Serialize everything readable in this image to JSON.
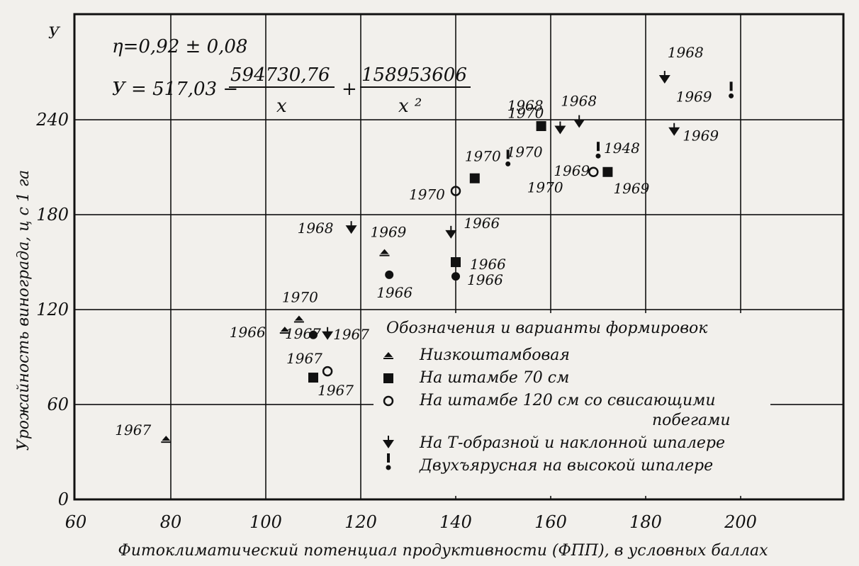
{
  "chart_data": {
    "type": "scatter",
    "xlim": [
      60,
      222
    ],
    "ylim": [
      0,
      285
    ],
    "grid": true,
    "x_ticks": [
      60,
      80,
      100,
      120,
      140,
      160,
      180,
      200
    ],
    "y_ticks": [
      0,
      60,
      120,
      180,
      240
    ],
    "x_tick_labels": [
      "60",
      "80",
      "100",
      "120",
      "140",
      "160",
      "180",
      "200"
    ],
    "y_tick_labels": [
      "0",
      "60",
      "120",
      "180",
      "240"
    ],
    "xlabel": "Фитоклиматический потенциал продуктивности (ФПП), в условных баллах",
    "ylabel": "Урожайность винограда, ц с 1 га",
    "y_axis_letter": "У",
    "equation": {
      "line1": "η=0,92 ± 0,08",
      "prefix": "У = 517,03 −",
      "num1": "594730,76",
      "den1": "x",
      "plus": "+",
      "num2": "158953606",
      "den2": "x ²"
    },
    "curve": {
      "formula": "y = 517.03 - 594730.76/x + 158953606/x^2",
      "dashed_low": [
        70,
        80
      ],
      "solid": [
        80,
        198
      ],
      "dashed_high": [
        198,
        221
      ]
    },
    "legend": {
      "title": "Обозначения и варианты формировок",
      "items": [
        {
          "marker": "tri",
          "label": "Низкоштамбовая"
        },
        {
          "marker": "square",
          "label": "На штамбе 70 см"
        },
        {
          "marker": "ring",
          "label": "На штамбе 120 см со свисающими"
        },
        {
          "marker": "none",
          "label": "побегами"
        },
        {
          "marker": "diamond",
          "label": "На Т-образной и наклонной шпалере"
        },
        {
          "marker": "excl",
          "label": "Двухъярусная на высокой шпалере"
        }
      ]
    },
    "points": [
      {
        "series": "tri",
        "x": 79,
        "y": 38,
        "label": "1967"
      },
      {
        "series": "tri",
        "x": 104,
        "y": 107,
        "label": "1966"
      },
      {
        "series": "tri",
        "x": 107,
        "y": 114,
        "label": "1970"
      },
      {
        "series": "tri",
        "x": 125,
        "y": 156,
        "label": "1969"
      },
      {
        "series": "square",
        "x": 110,
        "y": 77,
        "label": "1967"
      },
      {
        "series": "square",
        "x": 140,
        "y": 150,
        "label": "1966"
      },
      {
        "series": "square",
        "x": 144,
        "y": 203,
        "label": "1970"
      },
      {
        "series": "square",
        "x": 158,
        "y": 236,
        "label": "1968"
      },
      {
        "series": "square",
        "x": 172,
        "y": 207,
        "label": "1969"
      },
      {
        "series": "ring",
        "x": 113,
        "y": 81,
        "label": "1967"
      },
      {
        "series": "ring",
        "x": 140,
        "y": 195,
        "label": "1970"
      },
      {
        "series": "ring",
        "x": 169,
        "y": 207,
        "label": "1969"
      },
      {
        "series": "dot",
        "x": 110,
        "y": 104,
        "label": "1967"
      },
      {
        "series": "dot",
        "x": 126,
        "y": 142,
        "label": "1966"
      },
      {
        "series": "dot",
        "x": 140,
        "y": 141,
        "label": "1966"
      },
      {
        "series": "diamond",
        "x": 113,
        "y": 104,
        "label": "1967"
      },
      {
        "series": "diamond",
        "x": 118,
        "y": 171,
        "label": "1968"
      },
      {
        "series": "diamond",
        "x": 139,
        "y": 168,
        "label": "1966"
      },
      {
        "series": "diamond",
        "x": 162,
        "y": 234,
        "label": "1970"
      },
      {
        "series": "diamond",
        "x": 166,
        "y": 238,
        "label": "1968"
      },
      {
        "series": "diamond",
        "x": 184,
        "y": 266,
        "label": "1968"
      },
      {
        "series": "diamond",
        "x": 186,
        "y": 233,
        "label": "1969"
      },
      {
        "series": "excl",
        "x": 151,
        "y": 213,
        "label": "1970"
      },
      {
        "series": "excl",
        "x": 170,
        "y": 218,
        "label": "1948"
      },
      {
        "series": "excl",
        "x": 198,
        "y": 256,
        "label": "1969"
      }
    ],
    "extra_labels": [
      {
        "text": "1970",
        "x": 161,
        "y": 203
      }
    ]
  }
}
